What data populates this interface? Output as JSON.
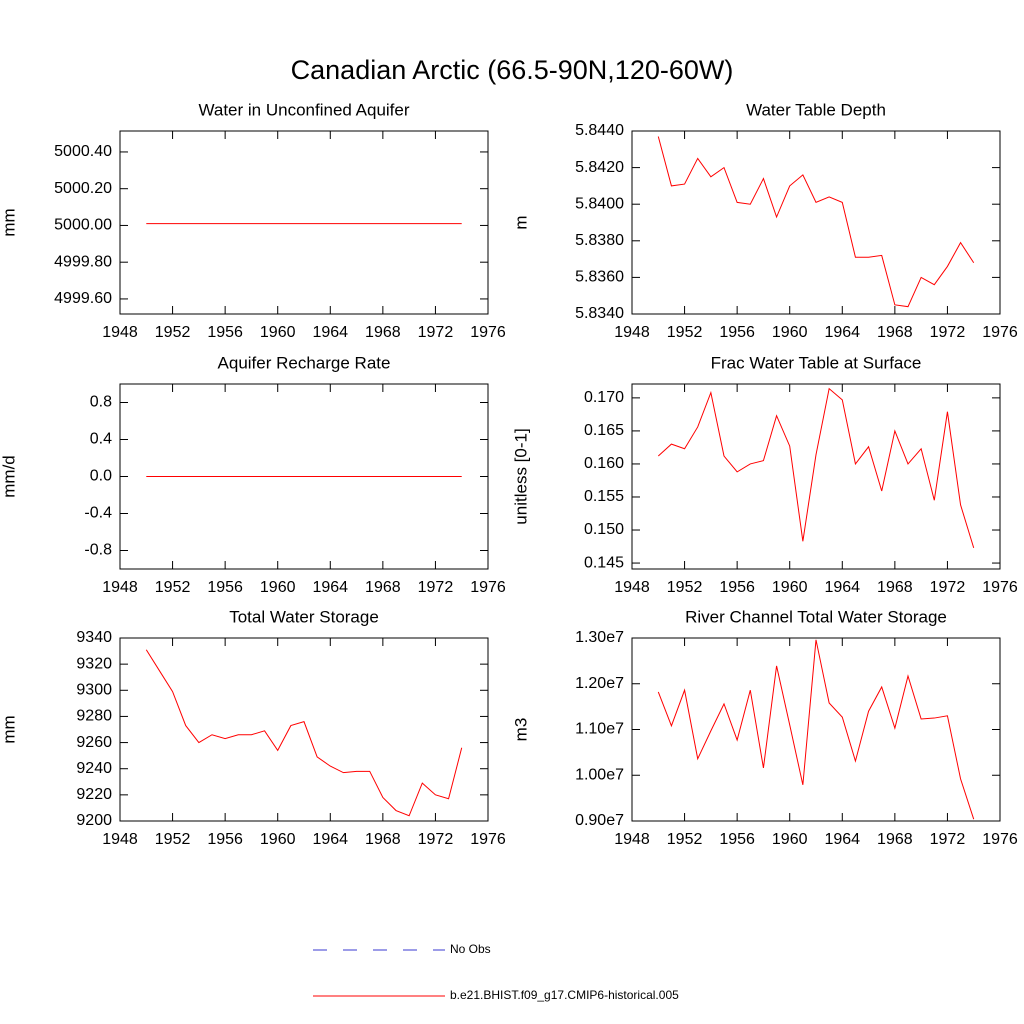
{
  "title": "Canadian Arctic (66.5-90N,120-60W)",
  "legend": {
    "entries": [
      {
        "label": "No Obs",
        "color": "#3a3ad0",
        "dash": true
      },
      {
        "label": "b.e21.BHIST.f09_g17.CMIP6-historical.005",
        "color": "#ff0000",
        "dash": false
      }
    ]
  },
  "chart_data": [
    {
      "type": "line",
      "title": "Water in Unconfined Aquifer",
      "ylabel": "mm",
      "x": [
        1950,
        1951,
        1952,
        1953,
        1954,
        1955,
        1956,
        1957,
        1958,
        1959,
        1960,
        1961,
        1962,
        1963,
        1964,
        1965,
        1966,
        1967,
        1968,
        1969,
        1970,
        1971,
        1972,
        1973,
        1974
      ],
      "series": [
        {
          "color": "#ff0000",
          "values": [
            5000.01,
            5000.01,
            5000.01,
            5000.01,
            5000.01,
            5000.01,
            5000.01,
            5000.01,
            5000.01,
            5000.01,
            5000.01,
            5000.01,
            5000.01,
            5000.01,
            5000.01,
            5000.01,
            5000.01,
            5000.01,
            5000.01,
            5000.01,
            5000.01,
            5000.01,
            5000.01,
            5000.01,
            5000.01
          ]
        }
      ],
      "xlim": [
        1948,
        1976
      ],
      "xticks": [
        1948,
        1952,
        1956,
        1960,
        1964,
        1968,
        1972,
        1976
      ],
      "ylim": [
        4999.518,
        5000.514
      ],
      "yticks": [
        {
          "value": 4999.6,
          "label": "4999.60"
        },
        {
          "value": 4999.8,
          "label": "4999.80"
        },
        {
          "value": 5000.0,
          "label": "5000.00"
        },
        {
          "value": 5000.2,
          "label": "5000.20"
        },
        {
          "value": 5000.4,
          "label": "5000.40"
        }
      ]
    },
    {
      "type": "line",
      "title": "Water Table Depth",
      "ylabel": "m",
      "x": [
        1950,
        1951,
        1952,
        1953,
        1954,
        1955,
        1956,
        1957,
        1958,
        1959,
        1960,
        1961,
        1962,
        1963,
        1964,
        1965,
        1966,
        1967,
        1968,
        1969,
        1970,
        1971,
        1972,
        1973,
        1974
      ],
      "series": [
        {
          "color": "#ff0000",
          "values": [
            5.8437,
            5.841,
            5.8411,
            5.8425,
            5.8415,
            5.842,
            5.8401,
            5.84,
            5.8414,
            5.8393,
            5.841,
            5.8416,
            5.8401,
            5.8404,
            5.8401,
            5.8371,
            5.8371,
            5.8372,
            5.8345,
            5.8344,
            5.836,
            5.8356,
            5.8366,
            5.8379,
            5.8368
          ]
        }
      ],
      "xlim": [
        1948,
        1976
      ],
      "xticks": [
        1948,
        1952,
        1956,
        1960,
        1964,
        1968,
        1972,
        1976
      ],
      "ylim": [
        5.834,
        5.844
      ],
      "yticks": [
        {
          "value": 5.834,
          "label": "5.8340"
        },
        {
          "value": 5.836,
          "label": "5.8360"
        },
        {
          "value": 5.838,
          "label": "5.8380"
        },
        {
          "value": 5.84,
          "label": "5.8400"
        },
        {
          "value": 5.842,
          "label": "5.8420"
        },
        {
          "value": 5.844,
          "label": "5.8440"
        }
      ]
    },
    {
      "type": "line",
      "title": "Aquifer Recharge Rate",
      "ylabel": "mm/d",
      "x": [
        1950,
        1951,
        1952,
        1953,
        1954,
        1955,
        1956,
        1957,
        1958,
        1959,
        1960,
        1961,
        1962,
        1963,
        1964,
        1965,
        1966,
        1967,
        1968,
        1969,
        1970,
        1971,
        1972,
        1973,
        1974
      ],
      "series": [
        {
          "color": "#ff0000",
          "values": [
            0,
            0,
            0,
            0,
            0,
            0,
            0,
            0,
            0,
            0,
            0,
            0,
            0,
            0,
            0,
            0,
            0,
            0,
            0,
            0,
            0,
            0,
            0,
            0,
            0
          ]
        }
      ],
      "xlim": [
        1948,
        1976
      ],
      "xticks": [
        1948,
        1952,
        1956,
        1960,
        1964,
        1968,
        1972,
        1976
      ],
      "ylim": [
        -1.0,
        1.0
      ],
      "yticks": [
        -0.8,
        -0.4,
        {
          "value": 0,
          "label": "0.0"
        },
        0.4,
        0.8
      ]
    },
    {
      "type": "line",
      "title": "Frac Water Table at Surface",
      "ylabel": "unitless [0-1]",
      "x": [
        1950,
        1951,
        1952,
        1953,
        1954,
        1955,
        1956,
        1957,
        1958,
        1959,
        1960,
        1961,
        1962,
        1963,
        1964,
        1965,
        1966,
        1967,
        1968,
        1969,
        1970,
        1971,
        1972,
        1973,
        1974
      ],
      "series": [
        {
          "color": "#ff0000",
          "values": [
            0.1612,
            0.163,
            0.1623,
            0.1656,
            0.1708,
            0.1612,
            0.1588,
            0.16,
            0.1605,
            0.1673,
            0.1627,
            0.1483,
            0.1614,
            0.1714,
            0.1697,
            0.16,
            0.1626,
            0.1559,
            0.165,
            0.16,
            0.1623,
            0.1545,
            0.1679,
            0.1538,
            0.1473
          ]
        }
      ],
      "xlim": [
        1948,
        1976
      ],
      "xticks": [
        1948,
        1952,
        1956,
        1960,
        1964,
        1968,
        1972,
        1976
      ],
      "ylim": [
        0.1441,
        0.1721
      ],
      "yticks": [
        0.145,
        {
          "value": 0.15,
          "label": "0.150"
        },
        0.155,
        {
          "value": 0.16,
          "label": "0.160"
        },
        0.165,
        {
          "value": 0.17,
          "label": "0.170"
        }
      ]
    },
    {
      "type": "line",
      "title": "Total Water Storage",
      "ylabel": "mm",
      "x": [
        1950,
        1951,
        1952,
        1953,
        1954,
        1955,
        1956,
        1957,
        1958,
        1959,
        1960,
        1961,
        1962,
        1963,
        1964,
        1965,
        1966,
        1967,
        1968,
        1969,
        1970,
        1971,
        1972,
        1973,
        1974
      ],
      "series": [
        {
          "color": "#ff0000",
          "values": [
            9331,
            9315,
            9299,
            9273,
            9260,
            9266,
            9263,
            9266,
            9266,
            9269,
            9254,
            9273,
            9276,
            9249,
            9242,
            9237,
            9238,
            9238,
            9218,
            9208,
            9204,
            9229,
            9220,
            9217,
            9256
          ]
        }
      ],
      "xlim": [
        1948,
        1976
      ],
      "xticks": [
        1948,
        1952,
        1956,
        1960,
        1964,
        1968,
        1972,
        1976
      ],
      "ylim": [
        9200,
        9340
      ],
      "yticks": [
        9200,
        9220,
        9240,
        9260,
        9280,
        9300,
        9320,
        9340
      ]
    },
    {
      "type": "line",
      "title": "River Channel Total Water Storage",
      "ylabel": "m3",
      "x": [
        1950,
        1951,
        1952,
        1953,
        1954,
        1955,
        1956,
        1957,
        1958,
        1959,
        1960,
        1961,
        1962,
        1963,
        1964,
        1965,
        1966,
        1967,
        1968,
        1969,
        1970,
        1971,
        1972,
        1973,
        1974
      ],
      "series": [
        {
          "color": "#ff0000",
          "values": [
            11820000,
            11080000,
            11860000,
            10360000,
            10970000,
            11560000,
            10770000,
            11860000,
            10160000,
            12390000,
            11100000,
            9790000,
            12960000,
            11580000,
            11270000,
            10310000,
            11400000,
            11930000,
            11030000,
            12170000,
            11230000,
            11250000,
            11300000,
            9920000,
            9040000
          ]
        }
      ],
      "xlim": [
        1948,
        1976
      ],
      "xticks": [
        1948,
        1952,
        1956,
        1960,
        1964,
        1968,
        1972,
        1976
      ],
      "ylim": [
        9000000,
        13000000
      ],
      "yticks": [
        {
          "value": 9000000,
          "label": "0.90e7"
        },
        {
          "value": 10000000,
          "label": "1.00e7"
        },
        {
          "value": 11000000,
          "label": "1.10e7"
        },
        {
          "value": 12000000,
          "label": "1.20e7"
        },
        {
          "value": 13000000,
          "label": "1.30e7"
        }
      ]
    }
  ]
}
